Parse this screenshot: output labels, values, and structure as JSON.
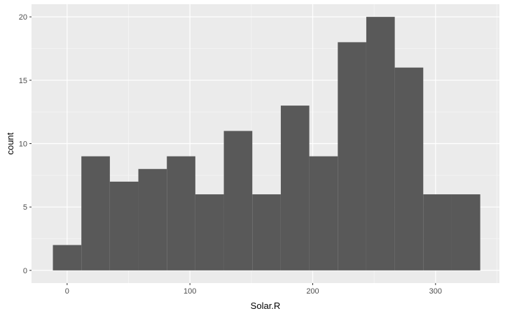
{
  "chart_data": {
    "type": "bar",
    "subtype": "histogram",
    "xlabel": "Solar.R",
    "ylabel": "count",
    "title": "",
    "x_ticks": [
      0,
      100,
      200,
      300
    ],
    "x_tick_labels": [
      "0",
      "100",
      "200",
      "300"
    ],
    "y_ticks": [
      0,
      5,
      10,
      15,
      20
    ],
    "y_tick_labels": [
      "0",
      "5",
      "10",
      "15",
      "20"
    ],
    "xlim": [
      -29,
      352
    ],
    "ylim": [
      -1,
      21
    ],
    "bin_width": 23.2,
    "bins": [
      {
        "start": -11.6,
        "end": 11.6,
        "count": 2
      },
      {
        "start": 11.6,
        "end": 34.8,
        "count": 9
      },
      {
        "start": 34.8,
        "end": 58.0,
        "count": 7
      },
      {
        "start": 58.0,
        "end": 81.2,
        "count": 8
      },
      {
        "start": 81.2,
        "end": 104.4,
        "count": 9
      },
      {
        "start": 104.4,
        "end": 127.6,
        "count": 6
      },
      {
        "start": 127.6,
        "end": 150.8,
        "count": 11
      },
      {
        "start": 150.8,
        "end": 174.0,
        "count": 6
      },
      {
        "start": 174.0,
        "end": 197.2,
        "count": 13
      },
      {
        "start": 197.2,
        "end": 220.4,
        "count": 9
      },
      {
        "start": 220.4,
        "end": 243.6,
        "count": 18
      },
      {
        "start": 243.6,
        "end": 266.8,
        "count": 20
      },
      {
        "start": 266.8,
        "end": 290.0,
        "count": 16
      },
      {
        "start": 290.0,
        "end": 313.2,
        "count": 6
      },
      {
        "start": 313.2,
        "end": 336.4,
        "count": 6
      }
    ],
    "grid": true,
    "colors": {
      "panel_background": "#EBEBEB",
      "grid_major": "#FFFFFF",
      "grid_minor": "#F5F5F5",
      "bar_fill": "#595959",
      "text": "#4D4D4D",
      "axis_title": "#000000",
      "ticks": "#333333"
    }
  }
}
